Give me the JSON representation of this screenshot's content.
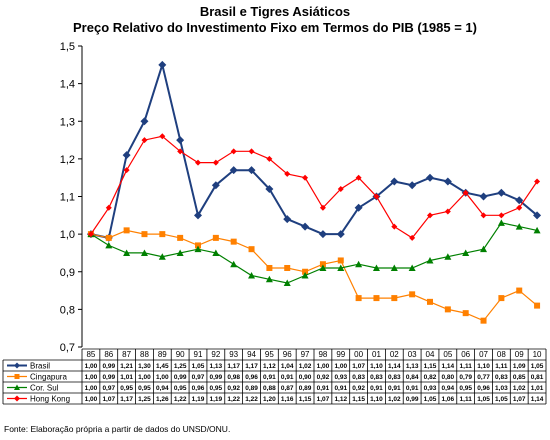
{
  "chart_data": {
    "type": "line",
    "title": "Brasil e Tigres Asiáticos",
    "subtitle": "Preço Relativo do Investimento Fixo em Termos do PIB (1985  = 1)",
    "source": "Fonte: Elaboração própria a partir de dados do UNSD/ONU.",
    "xlabel": "",
    "ylabel": "",
    "ylim": [
      0.7,
      1.5
    ],
    "yticks": [
      "0,7",
      "0,8",
      "0,9",
      "1,0",
      "1,1",
      "1,2",
      "1,3",
      "1,4",
      "1,5"
    ],
    "grid": false,
    "legend": "bottom data table",
    "categories": [
      "85",
      "86",
      "87",
      "88",
      "89",
      "90",
      "91",
      "92",
      "93",
      "94",
      "95",
      "96",
      "97",
      "98",
      "99",
      "00",
      "01",
      "02",
      "03",
      "04",
      "05",
      "06",
      "07",
      "08",
      "09",
      "10"
    ],
    "series": [
      {
        "name": "Brasil",
        "color": "#1F3F7F",
        "marker": "diamond",
        "values": [
          1.0,
          0.99,
          1.21,
          1.3,
          1.45,
          1.25,
          1.05,
          1.13,
          1.17,
          1.17,
          1.12,
          1.04,
          1.02,
          1.0,
          1.0,
          1.07,
          1.1,
          1.14,
          1.13,
          1.15,
          1.14,
          1.11,
          1.1,
          1.11,
          1.09,
          1.05
        ],
        "labels": [
          "1,00",
          "0,99",
          "1,21",
          "1,30",
          "1,45",
          "1,25",
          "1,05",
          "1,13",
          "1,17",
          "1,17",
          "1,12",
          "1,04",
          "1,02",
          "1,00",
          "1,00",
          "1,07",
          "1,10",
          "1,14",
          "1,13",
          "1,15",
          "1,14",
          "1,11",
          "1,10",
          "1,11",
          "1,09",
          "1,05"
        ]
      },
      {
        "name": "Cingapura",
        "color": "#FF8000",
        "marker": "square",
        "values": [
          1.0,
          0.99,
          1.01,
          1.0,
          1.0,
          0.99,
          0.97,
          0.99,
          0.98,
          0.96,
          0.91,
          0.91,
          0.9,
          0.92,
          0.93,
          0.83,
          0.83,
          0.83,
          0.84,
          0.82,
          0.8,
          0.79,
          0.77,
          0.83,
          0.85,
          0.81
        ],
        "labels": [
          "1,00",
          "0,99",
          "1,01",
          "1,00",
          "1,00",
          "0,99",
          "0,97",
          "0,99",
          "0,98",
          "0,96",
          "0,91",
          "0,91",
          "0,90",
          "0,92",
          "0,93",
          "0,83",
          "0,83",
          "0,83",
          "0,84",
          "0,82",
          "0,80",
          "0,79",
          "0,77",
          "0,83",
          "0,85",
          "0,81"
        ]
      },
      {
        "name": "Cor. Sul",
        "color": "#008000",
        "marker": "triangle",
        "values": [
          1.0,
          0.97,
          0.95,
          0.95,
          0.94,
          0.95,
          0.96,
          0.95,
          0.92,
          0.89,
          0.88,
          0.87,
          0.89,
          0.91,
          0.91,
          0.92,
          0.91,
          0.91,
          0.91,
          0.93,
          0.94,
          0.95,
          0.96,
          1.03,
          1.02,
          1.01
        ],
        "labels": [
          "1,00",
          "0,97",
          "0,95",
          "0,95",
          "0,94",
          "0,95",
          "0,96",
          "0,95",
          "0,92",
          "0,89",
          "0,88",
          "0,87",
          "0,89",
          "0,91",
          "0,91",
          "0,92",
          "0,91",
          "0,91",
          "0,91",
          "0,93",
          "0,94",
          "0,95",
          "0,96",
          "1,03",
          "1,02",
          "1,01"
        ]
      },
      {
        "name": "Hong Kong",
        "color": "#FF0000",
        "marker": "diamond-small",
        "values": [
          1.0,
          1.07,
          1.17,
          1.25,
          1.26,
          1.22,
          1.19,
          1.19,
          1.22,
          1.22,
          1.2,
          1.16,
          1.15,
          1.07,
          1.12,
          1.15,
          1.1,
          1.02,
          0.99,
          1.05,
          1.06,
          1.11,
          1.05,
          1.05,
          1.07,
          1.14
        ],
        "labels": [
          "1,00",
          "1,07",
          "1,17",
          "1,25",
          "1,26",
          "1,22",
          "1,19",
          "1,19",
          "1,22",
          "1,22",
          "1,20",
          "1,16",
          "1,15",
          "1,07",
          "1,12",
          "1,15",
          "1,10",
          "1,02",
          "0,99",
          "1,05",
          "1,06",
          "1,11",
          "1,05",
          "1,05",
          "1,07",
          "1,14"
        ]
      }
    ]
  }
}
